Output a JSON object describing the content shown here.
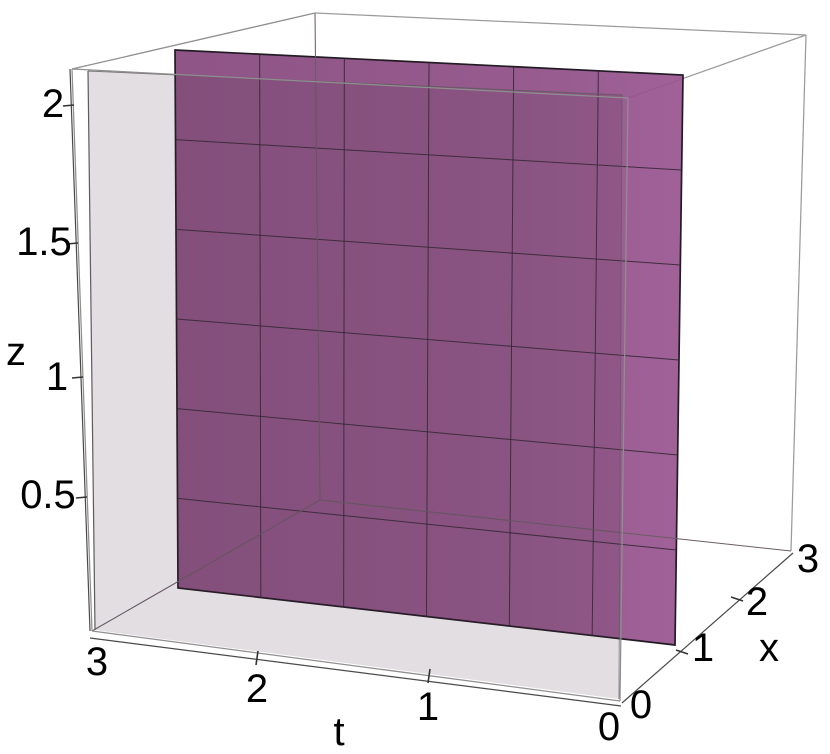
{
  "figure": {
    "kind": "mathematica-style 3D plot",
    "background_color": "#ffffff",
    "wireframe_color": "#9b9b9b"
  },
  "chart_data": {
    "type": "surface3d",
    "title": "",
    "box": {
      "t_range": [
        0,
        3
      ],
      "x_range": [
        0,
        3
      ],
      "z_range": [
        0,
        2.1
      ]
    },
    "axes": {
      "t": {
        "label": "t",
        "range": [
          0,
          3
        ],
        "reversed_display": true,
        "tick_values": [
          3,
          2,
          1,
          0
        ],
        "tick_labels": [
          "3",
          "2",
          "1",
          "0"
        ]
      },
      "x": {
        "label": "x",
        "range": [
          0,
          3
        ],
        "tick_values": [
          0,
          1,
          2,
          3
        ],
        "tick_labels": [
          "0",
          "1",
          "2",
          "3"
        ]
      },
      "z": {
        "label": "z",
        "range": [
          0,
          2.1
        ],
        "tick_values": [
          2,
          1.5,
          1,
          0.5
        ],
        "tick_labels": [
          "2",
          "1.5",
          "1",
          "0.5"
        ]
      }
    },
    "surfaces": [
      {
        "name": "purple-plane",
        "equation": "x = 1",
        "spans": {
          "t": [
            0,
            3
          ],
          "z": [
            0,
            2.1
          ]
        },
        "fill_color_left": "#87487d",
        "fill_color_right": "#97538e",
        "opacity": 0.92,
        "outline_color": "#221a24",
        "mesh": {
          "t_divisions": 6,
          "z_divisions": 6,
          "line_color": "#2e2430"
        }
      },
      {
        "name": "gray-plane",
        "equation": "x ≈ 0.05",
        "spans": {
          "t": [
            0,
            3
          ],
          "z": [
            0,
            2.1
          ]
        },
        "fill_color": "#dedbdc",
        "opacity": 0.85,
        "edge_color": "#5f5a5e"
      }
    ],
    "grid": false,
    "legend": null
  }
}
